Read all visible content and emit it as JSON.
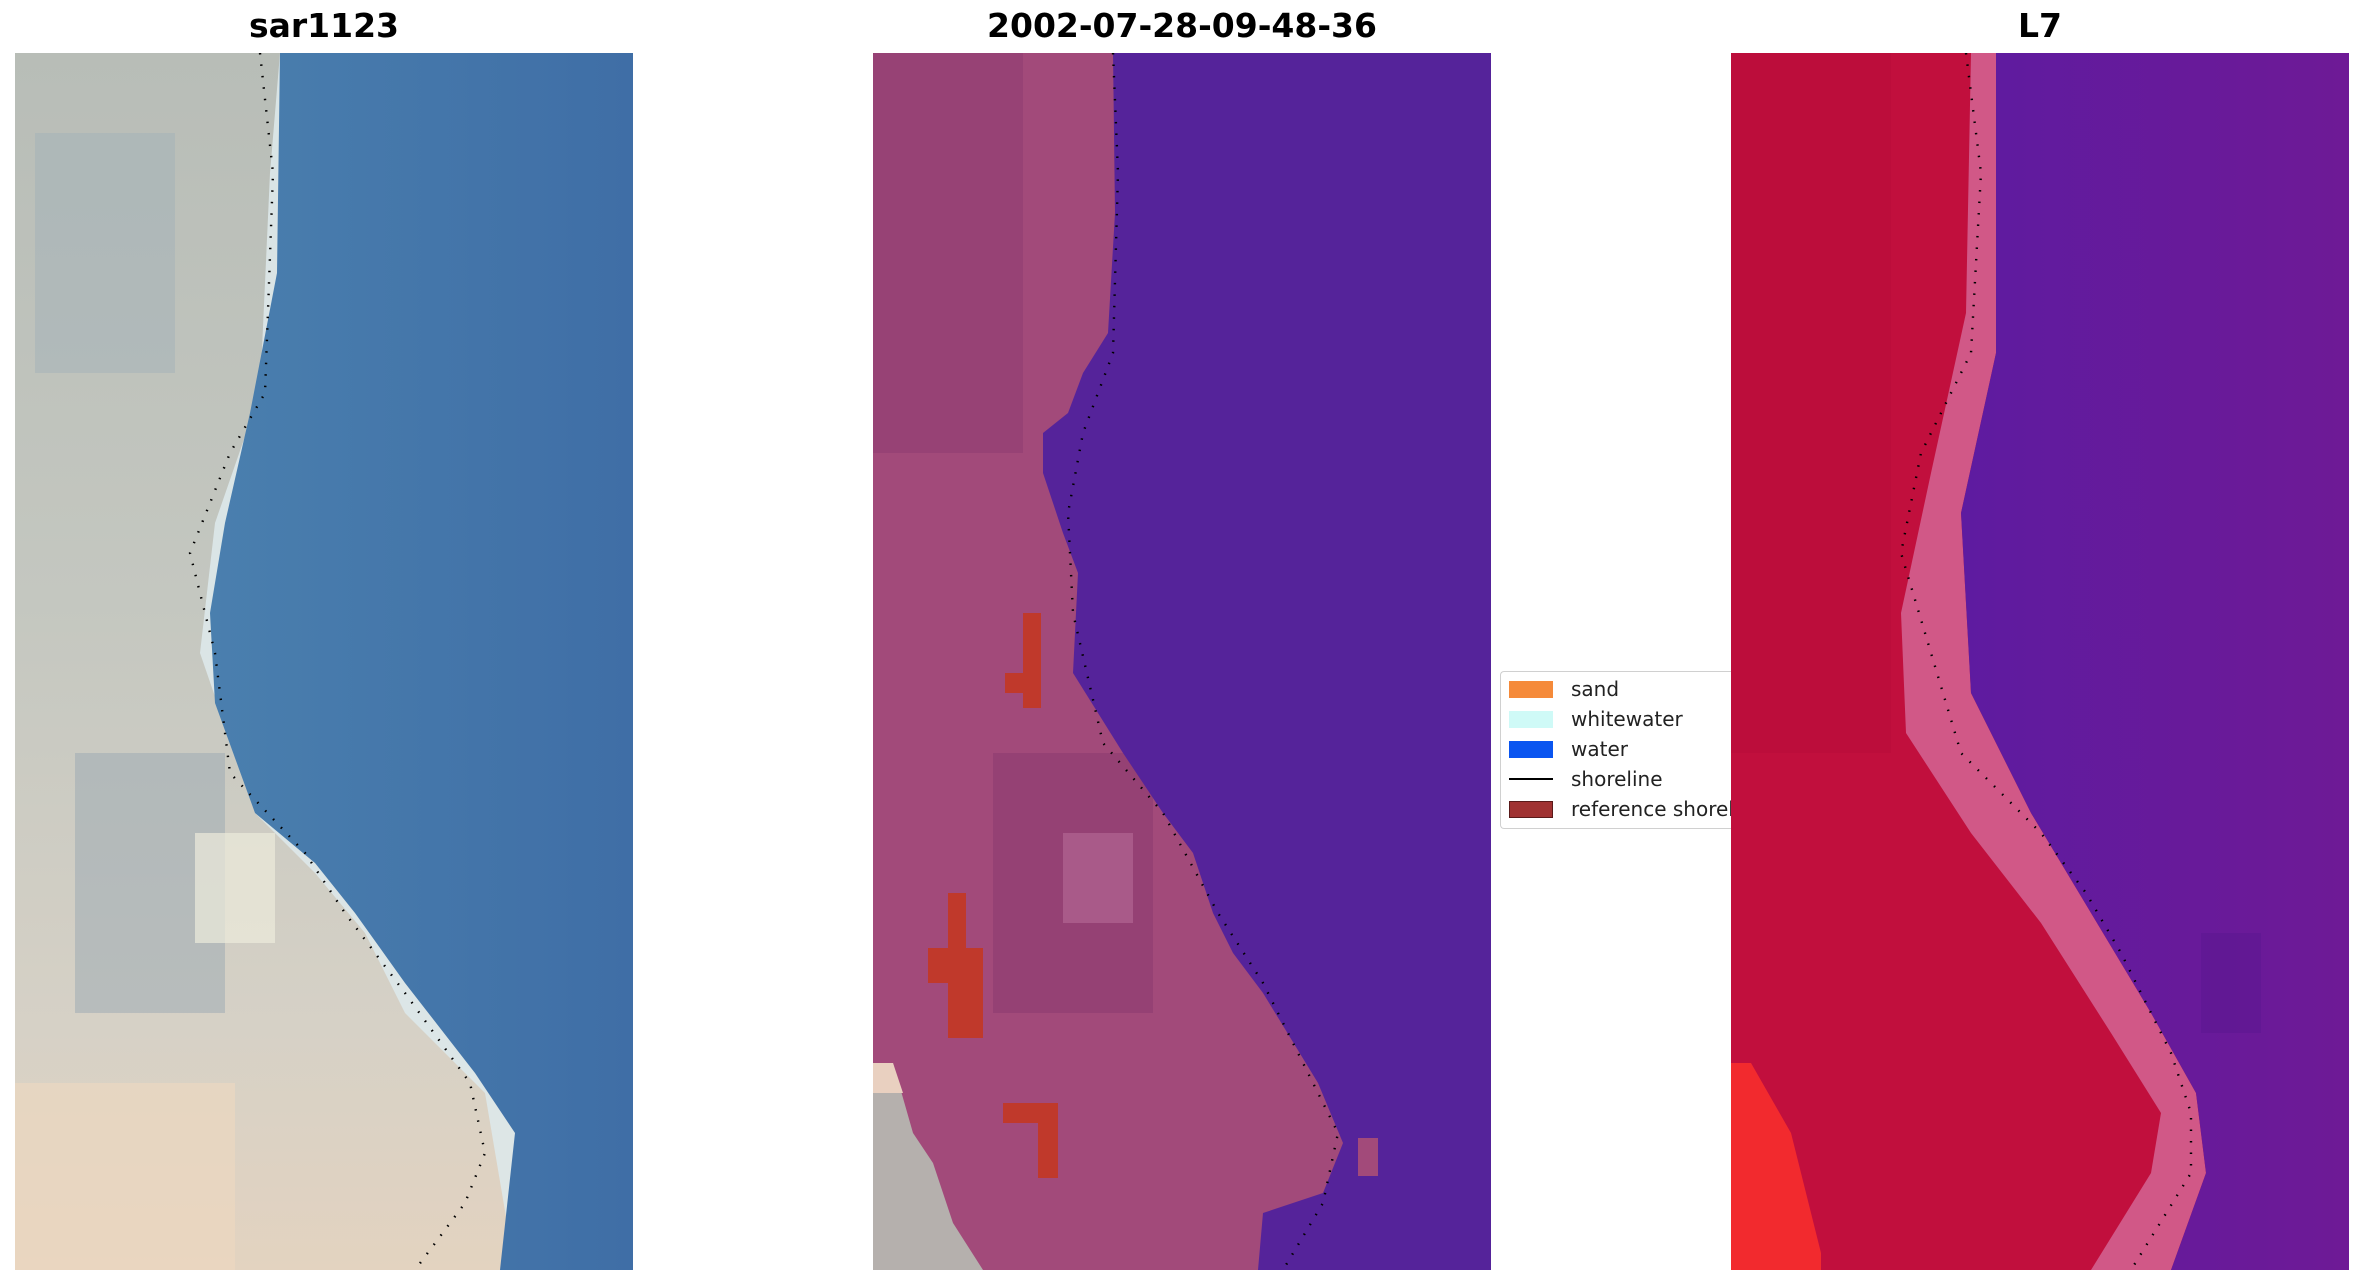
{
  "panels": [
    {
      "title": "sar1123"
    },
    {
      "title": "2002-07-28-09-48-36"
    },
    {
      "title": "L7"
    }
  ],
  "legend": {
    "placement": "center",
    "items": [
      {
        "label": "sand",
        "color": "#f58a3a",
        "kind": "patch"
      },
      {
        "label": "whitewater",
        "color": "#cffaf7",
        "kind": "patch"
      },
      {
        "label": "water",
        "color": "#0a55f0",
        "kind": "patch"
      },
      {
        "label": "shoreline",
        "color": "#000000",
        "kind": "line"
      },
      {
        "label": "reference shoreline",
        "color": "#a03232",
        "kind": "patch"
      }
    ]
  },
  "colors": {
    "rgb_land": "#c8c9c3",
    "rgb_water": "#3f6ea6",
    "classified_land": "#a24a7a",
    "classified_water": "#55239a",
    "classified_reference": "#c0392b",
    "l7_land": "#c10f3d",
    "l7_water": "#6a169a"
  }
}
